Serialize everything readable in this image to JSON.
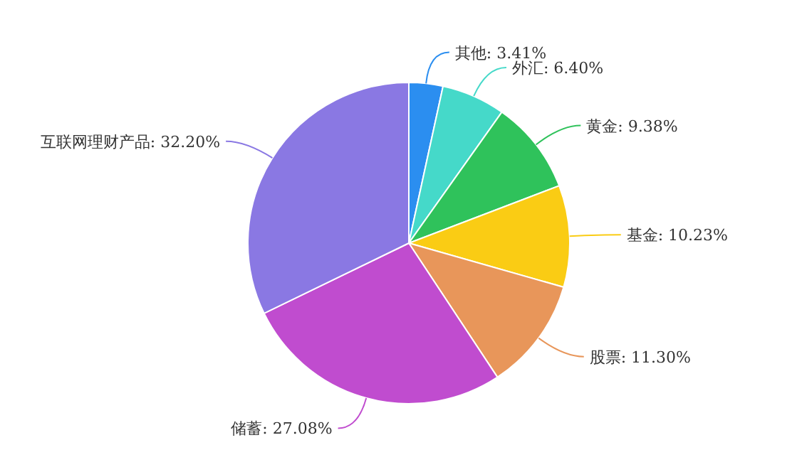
{
  "chart_data": {
    "type": "pie",
    "categories": [
      "其他",
      "外汇",
      "黄金",
      "基金",
      "股票",
      "储蓄",
      "互联网理财产品"
    ],
    "values": [
      3.41,
      6.4,
      9.38,
      10.23,
      11.3,
      27.08,
      32.2
    ],
    "value_labels": [
      "3.41%",
      "6.40%",
      "9.38%",
      "10.23%",
      "11.30%",
      "27.08%",
      "32.20%"
    ],
    "colors": [
      "#2b8ef0",
      "#45d9c9",
      "#2fc25b",
      "#facc14",
      "#e8965a",
      "#c04ccf",
      "#8a78e3"
    ],
    "legend": false
  }
}
